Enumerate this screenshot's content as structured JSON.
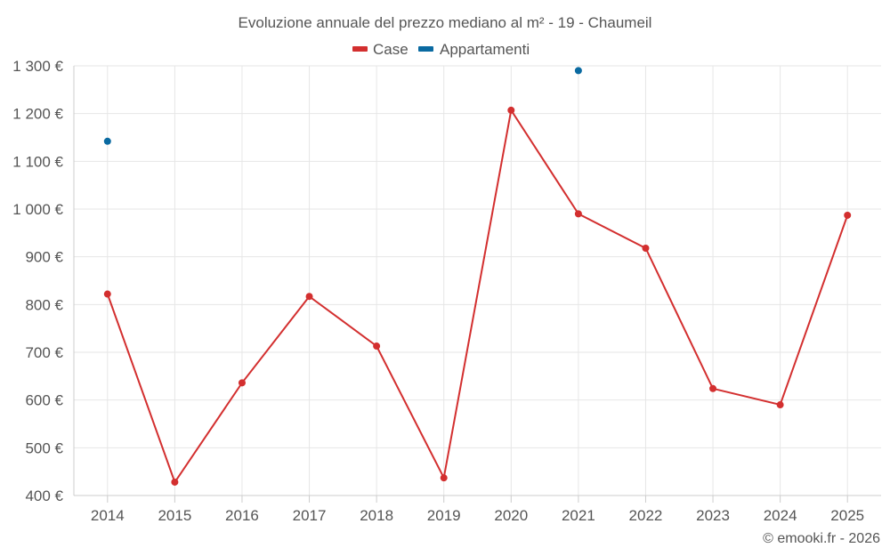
{
  "chart_data": {
    "type": "line",
    "title": "Evoluzione annuale del prezzo mediano al m² - 19 - Chaumeil",
    "categories": [
      "2014",
      "2015",
      "2016",
      "2017",
      "2018",
      "2019",
      "2020",
      "2021",
      "2022",
      "2023",
      "2024",
      "2025"
    ],
    "series": [
      {
        "name": "Case",
        "color": "#d32f2f",
        "values": [
          822,
          428,
          636,
          817,
          713,
          437,
          1207,
          990,
          918,
          624,
          590,
          987
        ]
      },
      {
        "name": "Appartamenti",
        "color": "#0a6aa1",
        "values": [
          1142,
          null,
          null,
          null,
          null,
          null,
          null,
          1290,
          null,
          null,
          null,
          null
        ]
      }
    ],
    "yticks": [
      {
        "value": 400,
        "label": "400 €"
      },
      {
        "value": 500,
        "label": "500 €"
      },
      {
        "value": 600,
        "label": "600 €"
      },
      {
        "value": 700,
        "label": "700 €"
      },
      {
        "value": 800,
        "label": "800 €"
      },
      {
        "value": 900,
        "label": "900 €"
      },
      {
        "value": 1000,
        "label": "1 000 €"
      },
      {
        "value": 1100,
        "label": "1 100 €"
      },
      {
        "value": 1200,
        "label": "1 200 €"
      },
      {
        "value": 1300,
        "label": "1 300 €"
      }
    ],
    "ylim": [
      400,
      1300
    ],
    "xlabel": "",
    "ylabel": "",
    "grid": true,
    "legend": "top-center",
    "credit": "© emooki.fr - 2026"
  }
}
